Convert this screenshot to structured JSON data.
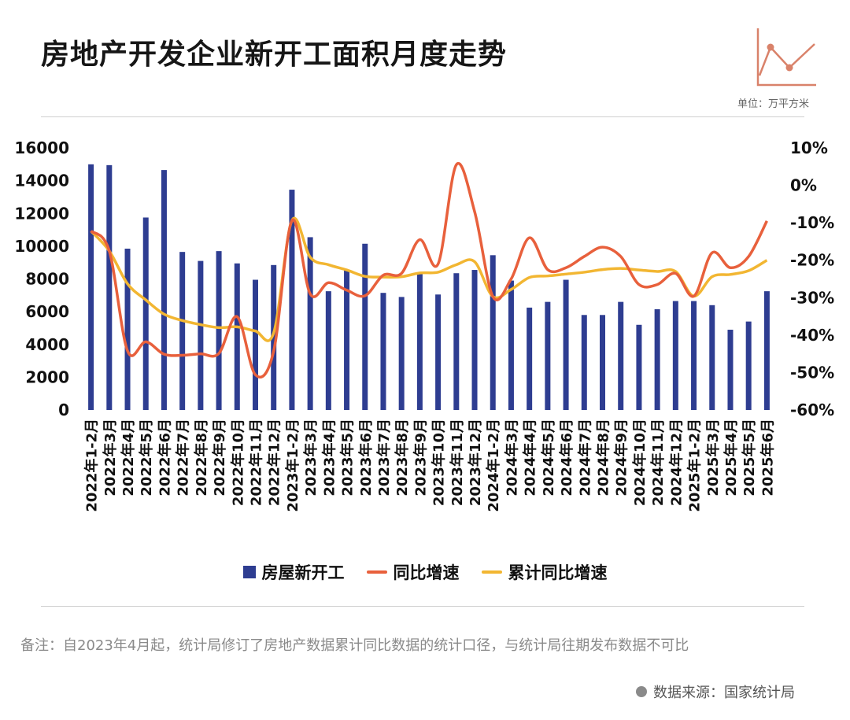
{
  "title": "房地产开发企业新开工面积月度走势",
  "unit_label": "单位：万平方米",
  "note": "备注：自2023年4月起，统计局修订了房地产数据累计同比数据的统计口径，与统计局往期发布数据不可比",
  "source": "数据来源：国家统计局",
  "colors": {
    "bar": "#2e3d91",
    "yoy": "#e8603c",
    "cumulative": "#f2b632",
    "deco": "#d9826a"
  },
  "chart_data": {
    "type": "bar",
    "categories": [
      "2022年1-2月",
      "2022年3月",
      "2022年4月",
      "2022年5月",
      "2022年6月",
      "2022年7月",
      "2022年8月",
      "2022年9月",
      "2022年10月",
      "2022年11月",
      "2022年12月",
      "2023年1-2月",
      "2023年3月",
      "2023年4月",
      "2023年5月",
      "2023年6月",
      "2023年7月",
      "2023年8月",
      "2023年9月",
      "2023年10月",
      "2023年11月",
      "2023年12月",
      "2024年1-2月",
      "2024年3月",
      "2024年4月",
      "2024年5月",
      "2024年6月",
      "2024年7月",
      "2024年8月",
      "2024年9月",
      "2024年10月",
      "2024年11月",
      "2024年12月",
      "2025年1-2月",
      "2025年3月",
      "2025年4月",
      "2025年5月",
      "2025年6月"
    ],
    "series": [
      {
        "name": "房屋新开工",
        "axis": "left",
        "kind": "bar",
        "values": [
          15000,
          14950,
          9850,
          11750,
          14650,
          9650,
          9100,
          9700,
          8950,
          7950,
          8850,
          13450,
          10550,
          7250,
          8550,
          10150,
          7150,
          6900,
          8300,
          7050,
          8350,
          8550,
          9450,
          7900,
          6250,
          6600,
          7950,
          5800,
          5800,
          6600,
          5200,
          6150,
          6650,
          6650,
          6400,
          4900,
          5400,
          7250
        ]
      },
      {
        "name": "同比增速",
        "axis": "right",
        "kind": "line",
        "values": [
          -12.2,
          -17.5,
          -44.2,
          -41.8,
          -45.1,
          -45.4,
          -45.0,
          -44.9,
          -35.1,
          -50.6,
          -44.3,
          -9.4,
          -29.0,
          -26.0,
          -28.0,
          -29.5,
          -24.0,
          -23.5,
          -14.5,
          -21.0,
          5.5,
          -7.0,
          -29.7,
          -25.0,
          -14.0,
          -22.5,
          -22.0,
          -19.0,
          -16.5,
          -19.0,
          -26.5,
          -26.5,
          -23.5,
          -29.6,
          -18.0,
          -22.0,
          -19.0,
          -9.5
        ]
      },
      {
        "name": "累计同比增速",
        "axis": "right",
        "kind": "line",
        "values": [
          -12.2,
          -17.5,
          -26.3,
          -30.6,
          -34.4,
          -36.1,
          -37.2,
          -38.0,
          -37.8,
          -38.9,
          -39.4,
          -9.4,
          -19.2,
          -21.2,
          -22.6,
          -24.3,
          -24.5,
          -24.4,
          -23.4,
          -23.2,
          -21.2,
          -20.4,
          -29.7,
          -27.8,
          -24.6,
          -24.2,
          -23.7,
          -23.2,
          -22.5,
          -22.2,
          -22.6,
          -23.0,
          -23.0,
          -29.6,
          -24.4,
          -23.8,
          -22.8,
          -20.0
        ]
      }
    ],
    "y_left": {
      "min": 0,
      "max": 16000,
      "ticks": [
        0,
        2000,
        4000,
        6000,
        8000,
        10000,
        12000,
        14000,
        16000
      ]
    },
    "y_right": {
      "min": -60,
      "max": 10,
      "ticks": [
        -60,
        -50,
        -40,
        -30,
        -20,
        -10,
        0,
        10
      ],
      "format": "percent"
    },
    "legend": {
      "position": "bottom",
      "items": [
        "房屋新开工",
        "同比增速",
        "累计同比增速"
      ]
    },
    "grid": false
  }
}
